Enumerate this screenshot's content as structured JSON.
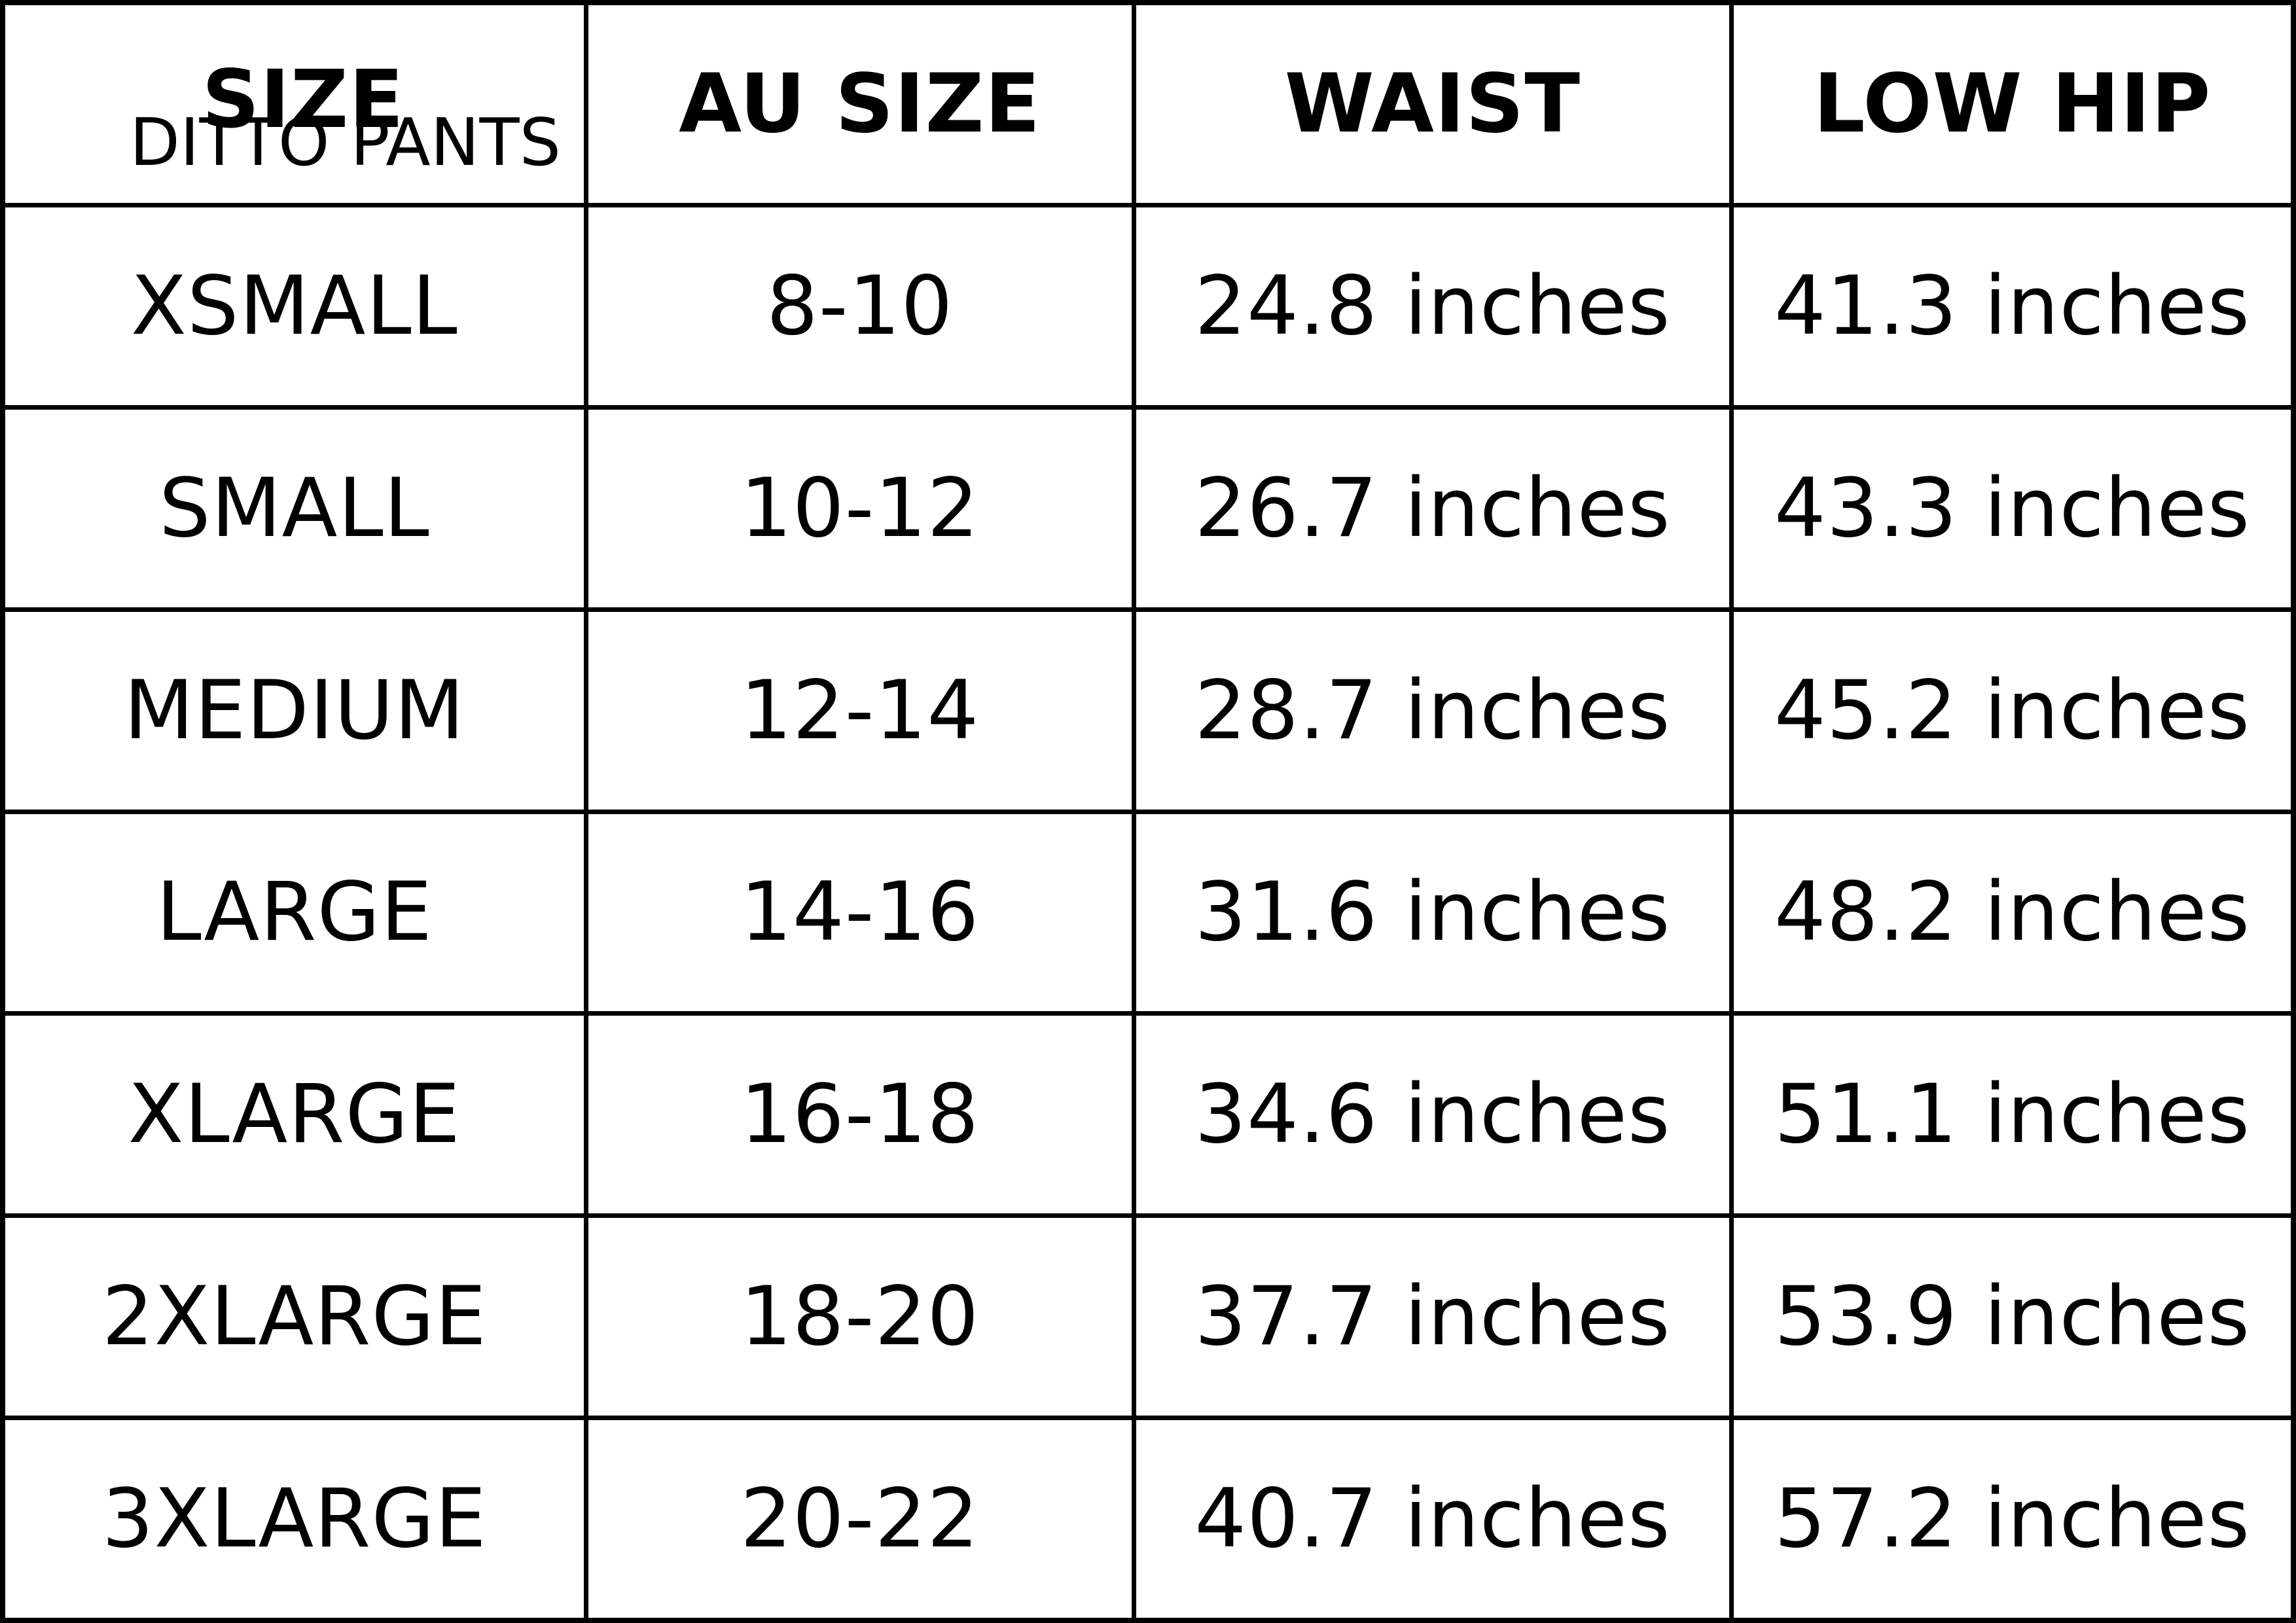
{
  "page": {
    "background_color": "#ffffff",
    "border_color": "#000000",
    "text_color": "#000000"
  },
  "table": {
    "brand": "DITTO PANTS",
    "columns": [
      {
        "key": "size",
        "label": "SIZE"
      },
      {
        "key": "au_size",
        "label": "AU SIZE"
      },
      {
        "key": "waist",
        "label": "WAIST"
      },
      {
        "key": "low_hip",
        "label": "LOW HIP"
      }
    ],
    "rows": [
      {
        "size": "XSMALL",
        "au_size": "8-10",
        "waist": "24.8 inches",
        "low_hip": "41.3 inches"
      },
      {
        "size": "SMALL",
        "au_size": "10-12",
        "waist": "26.7 inches",
        "low_hip": "43.3 inches"
      },
      {
        "size": "MEDIUM",
        "au_size": "12-14",
        "waist": "28.7 inches",
        "low_hip": "45.2 inches"
      },
      {
        "size": "LARGE",
        "au_size": "14-16",
        "waist": "31.6 inches",
        "low_hip": "48.2 inches"
      },
      {
        "size": "XLARGE",
        "au_size": "16-18",
        "waist": "34.6 inches",
        "low_hip": "51.1 inches"
      },
      {
        "size": "2XLARGE",
        "au_size": "18-20",
        "waist": "37.7 inches",
        "low_hip": "53.9 inches"
      },
      {
        "size": "3XLARGE",
        "au_size": "20-22",
        "waist": "40.7 inches",
        "low_hip": "57.2 inches"
      }
    ]
  }
}
